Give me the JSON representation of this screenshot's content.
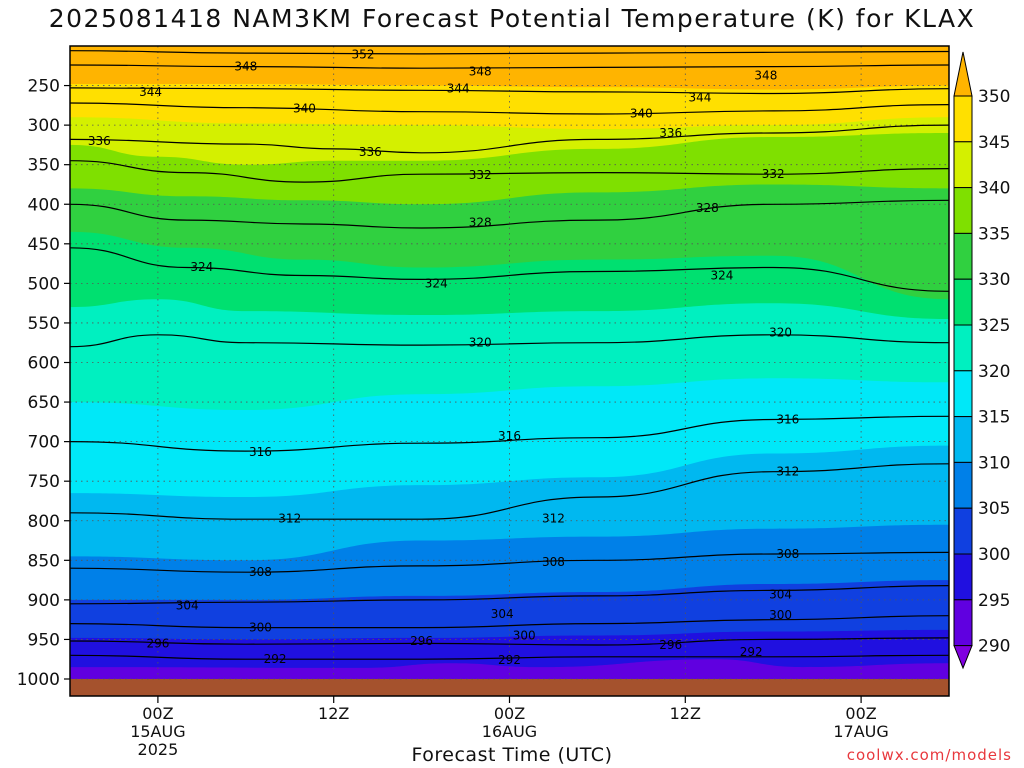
{
  "chart_data": {
    "type": "contour",
    "title": "2025081418 NAM3KM Forecast Potential Temperature (K) for KLAX",
    "xlabel": "Forecast Time (UTC)",
    "ylabel": "",
    "credit": "coolwx.com/models",
    "x_ticks": [
      {
        "hour": 6,
        "lines": [
          "00Z",
          "15AUG",
          "2025"
        ]
      },
      {
        "hour": 18,
        "lines": [
          "12Z"
        ]
      },
      {
        "hour": 30,
        "lines": [
          "00Z",
          "16AUG"
        ]
      },
      {
        "hour": 42,
        "lines": [
          "12Z"
        ]
      },
      {
        "hour": 54,
        "lines": [
          "00Z",
          "17AUG"
        ]
      }
    ],
    "xlim": [
      0,
      60
    ],
    "y_ticks": [
      250,
      300,
      350,
      400,
      450,
      500,
      550,
      600,
      650,
      700,
      750,
      800,
      850,
      900,
      950,
      1000
    ],
    "y_tick_labels": [
      "250",
      "300",
      "350",
      "400",
      "450",
      "500",
      "550",
      "600",
      "650",
      "700",
      "750",
      "800",
      "850",
      "900",
      "950",
      "1000"
    ],
    "ylim": [
      1000,
      200
    ],
    "y_scale": "pressure (inverted)",
    "grid": "dotted",
    "colorbar": {
      "labels": [
        "350",
        "345",
        "340",
        "335",
        "330",
        "325",
        "320",
        "315",
        "310",
        "305",
        "300",
        "295",
        "290"
      ],
      "colors": [
        "#ffb400",
        "#ffe000",
        "#d4f000",
        "#7fe000",
        "#30d040",
        "#00e070",
        "#00f0c0",
        "#00e8f8",
        "#00b8f0",
        "#0080e8",
        "#1040e0",
        "#2010e0",
        "#6000e0",
        "#8000e0"
      ]
    },
    "contour_levels": [
      {
        "value": 352,
        "label": "352",
        "hour": 20,
        "p": 211,
        "pts": [
          [
            0,
            206
          ],
          [
            12,
            209
          ],
          [
            24,
            210
          ],
          [
            36,
            209
          ],
          [
            48,
            208
          ],
          [
            60,
            207
          ]
        ]
      },
      {
        "value": 348,
        "label": "348",
        "hour": 12,
        "p": 226,
        "pts": [
          [
            0,
            224
          ],
          [
            12,
            226
          ],
          [
            24,
            228
          ],
          [
            36,
            227
          ],
          [
            48,
            226
          ],
          [
            60,
            224
          ]
        ]
      },
      {
        "value": 348,
        "label": "348",
        "hour": 28,
        "p": 232,
        "pts": []
      },
      {
        "value": 348,
        "label": "348",
        "hour": 47.5,
        "p": 237,
        "pts": []
      },
      {
        "value": 344,
        "label": "344",
        "hour": 5.5,
        "p": 258,
        "pts": [
          [
            0,
            253
          ],
          [
            12,
            254
          ],
          [
            24,
            256
          ],
          [
            36,
            258
          ],
          [
            48,
            260
          ],
          [
            60,
            254
          ]
        ]
      },
      {
        "value": 344,
        "label": "344",
        "hour": 26.5,
        "p": 254,
        "pts": []
      },
      {
        "value": 344,
        "label": "344",
        "hour": 43,
        "p": 265,
        "pts": []
      },
      {
        "value": 340,
        "label": "340",
        "hour": 16,
        "p": 279,
        "pts": [
          [
            0,
            272
          ],
          [
            12,
            278
          ],
          [
            24,
            283
          ],
          [
            36,
            286
          ],
          [
            48,
            282
          ],
          [
            60,
            274
          ]
        ]
      },
      {
        "value": 340,
        "label": "340",
        "hour": 39,
        "p": 285,
        "pts": []
      },
      {
        "value": 336,
        "label": "336",
        "hour": 2,
        "p": 320,
        "pts": [
          [
            0,
            318
          ],
          [
            12,
            324
          ],
          [
            18,
            330
          ],
          [
            24,
            335
          ],
          [
            36,
            318
          ],
          [
            48,
            310
          ],
          [
            60,
            300
          ]
        ]
      },
      {
        "value": 336,
        "label": "336",
        "hour": 20.5,
        "p": 334,
        "pts": []
      },
      {
        "value": 336,
        "label": "336",
        "hour": 41,
        "p": 310,
        "pts": []
      },
      {
        "value": 332,
        "label": "332",
        "hour": 28,
        "p": 363,
        "pts": [
          [
            0,
            345
          ],
          [
            8,
            360
          ],
          [
            16,
            372
          ],
          [
            24,
            362
          ],
          [
            36,
            360
          ],
          [
            48,
            362
          ],
          [
            60,
            355
          ]
        ]
      },
      {
        "value": 332,
        "label": "332",
        "hour": 48,
        "p": 362,
        "pts": []
      },
      {
        "value": 328,
        "label": "328",
        "hour": 28,
        "p": 423,
        "pts": [
          [
            0,
            400
          ],
          [
            8,
            420
          ],
          [
            16,
            425
          ],
          [
            24,
            430
          ],
          [
            36,
            420
          ],
          [
            48,
            400
          ],
          [
            60,
            395
          ]
        ]
      },
      {
        "value": 328,
        "label": "328",
        "hour": 43.5,
        "p": 405,
        "pts": []
      },
      {
        "value": 324,
        "label": "324",
        "hour": 9,
        "p": 479,
        "pts": [
          [
            0,
            455
          ],
          [
            8,
            480
          ],
          [
            16,
            490
          ],
          [
            24,
            495
          ],
          [
            36,
            485
          ],
          [
            48,
            480
          ],
          [
            60,
            510
          ]
        ]
      },
      {
        "value": 324,
        "label": "324",
        "hour": 25,
        "p": 500,
        "pts": []
      },
      {
        "value": 324,
        "label": "324",
        "hour": 44.5,
        "p": 490,
        "pts": []
      },
      {
        "value": 320,
        "label": "320",
        "hour": 28,
        "p": 575,
        "pts": [
          [
            0,
            580
          ],
          [
            6,
            565
          ],
          [
            12,
            575
          ],
          [
            24,
            578
          ],
          [
            36,
            575
          ],
          [
            48,
            565
          ],
          [
            60,
            575
          ]
        ]
      },
      {
        "value": 320,
        "label": "320",
        "hour": 48.5,
        "p": 562,
        "pts": []
      },
      {
        "value": 316,
        "label": "316",
        "hour": 13,
        "p": 713,
        "pts": [
          [
            0,
            700
          ],
          [
            12,
            712
          ],
          [
            24,
            702
          ],
          [
            36,
            695
          ],
          [
            48,
            672
          ],
          [
            60,
            668
          ]
        ]
      },
      {
        "value": 316,
        "label": "316",
        "hour": 30,
        "p": 693,
        "pts": []
      },
      {
        "value": 316,
        "label": "316",
        "hour": 49,
        "p": 672,
        "pts": []
      },
      {
        "value": 312,
        "label": "312",
        "hour": 15,
        "p": 797,
        "pts": [
          [
            0,
            790
          ],
          [
            12,
            798
          ],
          [
            24,
            798
          ],
          [
            36,
            770
          ],
          [
            48,
            738
          ],
          [
            60,
            728
          ]
        ]
      },
      {
        "value": 312,
        "label": "312",
        "hour": 33,
        "p": 797,
        "pts": []
      },
      {
        "value": 312,
        "label": "312",
        "hour": 49,
        "p": 738,
        "pts": []
      },
      {
        "value": 308,
        "label": "308",
        "hour": 13,
        "p": 865,
        "pts": [
          [
            0,
            860
          ],
          [
            12,
            865
          ],
          [
            24,
            857
          ],
          [
            36,
            850
          ],
          [
            48,
            842
          ],
          [
            60,
            840
          ]
        ]
      },
      {
        "value": 308,
        "label": "308",
        "hour": 33,
        "p": 852,
        "pts": []
      },
      {
        "value": 308,
        "label": "308",
        "hour": 49,
        "p": 842,
        "pts": []
      },
      {
        "value": 304,
        "label": "304",
        "hour": 8,
        "p": 907,
        "pts": [
          [
            0,
            905
          ],
          [
            12,
            903
          ],
          [
            24,
            900
          ],
          [
            36,
            895
          ],
          [
            48,
            888
          ],
          [
            60,
            882
          ]
        ]
      },
      {
        "value": 304,
        "label": "304",
        "hour": 29.5,
        "p": 918,
        "pts": []
      },
      {
        "value": 304,
        "label": "304",
        "hour": 48.5,
        "p": 893,
        "pts": []
      },
      {
        "value": 300,
        "label": "300",
        "hour": 13,
        "p": 935,
        "pts": [
          [
            0,
            930
          ],
          [
            12,
            935
          ],
          [
            24,
            935
          ],
          [
            36,
            930
          ],
          [
            48,
            925
          ],
          [
            60,
            920
          ]
        ]
      },
      {
        "value": 300,
        "label": "300",
        "hour": 31,
        "p": 945,
        "pts": []
      },
      {
        "value": 300,
        "label": "300",
        "hour": 48.5,
        "p": 919,
        "pts": []
      },
      {
        "value": 296,
        "label": "296",
        "hour": 6,
        "p": 955,
        "pts": [
          [
            0,
            952
          ],
          [
            12,
            956
          ],
          [
            24,
            955
          ],
          [
            36,
            957
          ],
          [
            48,
            950
          ],
          [
            60,
            948
          ]
        ]
      },
      {
        "value": 296,
        "label": "296",
        "hour": 24,
        "p": 952,
        "pts": []
      },
      {
        "value": 296,
        "label": "296",
        "hour": 41,
        "p": 957,
        "pts": []
      },
      {
        "value": 292,
        "label": "292",
        "hour": 14,
        "p": 975,
        "pts": [
          [
            0,
            970
          ],
          [
            12,
            975
          ],
          [
            24,
            975
          ],
          [
            36,
            972
          ],
          [
            48,
            972
          ],
          [
            60,
            970
          ]
        ]
      },
      {
        "value": 292,
        "label": "292",
        "hour": 30,
        "p": 976,
        "pts": []
      },
      {
        "value": 292,
        "label": "292",
        "hour": 46.5,
        "p": 966,
        "pts": []
      }
    ],
    "color_band_lows": [
      {
        "value": 345,
        "pts": [
          [
            0,
            248
          ],
          [
            12,
            248
          ],
          [
            24,
            250
          ],
          [
            36,
            252
          ],
          [
            48,
            255
          ],
          [
            60,
            250
          ]
        ]
      },
      {
        "value": 340,
        "pts": [
          [
            0,
            290
          ],
          [
            12,
            298
          ],
          [
            24,
            300
          ],
          [
            36,
            305
          ],
          [
            48,
            300
          ],
          [
            60,
            290
          ]
        ]
      },
      {
        "value": 335,
        "pts": [
          [
            0,
            325
          ],
          [
            6,
            340
          ],
          [
            12,
            350
          ],
          [
            18,
            345
          ],
          [
            24,
            345
          ],
          [
            36,
            330
          ],
          [
            48,
            315
          ],
          [
            60,
            310
          ]
        ]
      },
      {
        "value": 330,
        "pts": [
          [
            0,
            380
          ],
          [
            8,
            390
          ],
          [
            16,
            395
          ],
          [
            24,
            400
          ],
          [
            36,
            385
          ],
          [
            48,
            375
          ],
          [
            60,
            380
          ]
        ]
      },
      {
        "value": 325,
        "pts": [
          [
            0,
            435
          ],
          [
            8,
            455
          ],
          [
            16,
            470
          ],
          [
            24,
            480
          ],
          [
            36,
            470
          ],
          [
            48,
            465
          ],
          [
            60,
            520
          ]
        ]
      },
      {
        "value": 320,
        "pts": [
          [
            0,
            530
          ],
          [
            6,
            520
          ],
          [
            12,
            535
          ],
          [
            24,
            540
          ],
          [
            36,
            535
          ],
          [
            48,
            525
          ],
          [
            60,
            545
          ]
        ]
      },
      {
        "value": 315,
        "pts": [
          [
            0,
            650
          ],
          [
            12,
            660
          ],
          [
            24,
            640
          ],
          [
            36,
            630
          ],
          [
            48,
            620
          ],
          [
            60,
            625
          ]
        ]
      },
      {
        "value": 310,
        "pts": [
          [
            0,
            765
          ],
          [
            12,
            770
          ],
          [
            24,
            755
          ],
          [
            36,
            745
          ],
          [
            48,
            715
          ],
          [
            60,
            705
          ]
        ]
      },
      {
        "value": 305,
        "pts": [
          [
            0,
            845
          ],
          [
            12,
            850
          ],
          [
            24,
            825
          ],
          [
            36,
            820
          ],
          [
            48,
            810
          ],
          [
            60,
            805
          ]
        ]
      },
      {
        "value": 300,
        "pts": [
          [
            0,
            900
          ],
          [
            12,
            900
          ],
          [
            24,
            895
          ],
          [
            36,
            890
          ],
          [
            48,
            880
          ],
          [
            60,
            875
          ]
        ]
      },
      {
        "value": 295,
        "pts": [
          [
            0,
            948
          ],
          [
            12,
            950
          ],
          [
            24,
            948
          ],
          [
            36,
            945
          ],
          [
            48,
            940
          ],
          [
            60,
            938
          ]
        ]
      },
      {
        "value": 290,
        "pts": [
          [
            0,
            985
          ],
          [
            20,
            986
          ],
          [
            26,
            980
          ],
          [
            32,
            985
          ],
          [
            44,
            975
          ],
          [
            50,
            985
          ],
          [
            60,
            980
          ]
        ]
      }
    ]
  }
}
